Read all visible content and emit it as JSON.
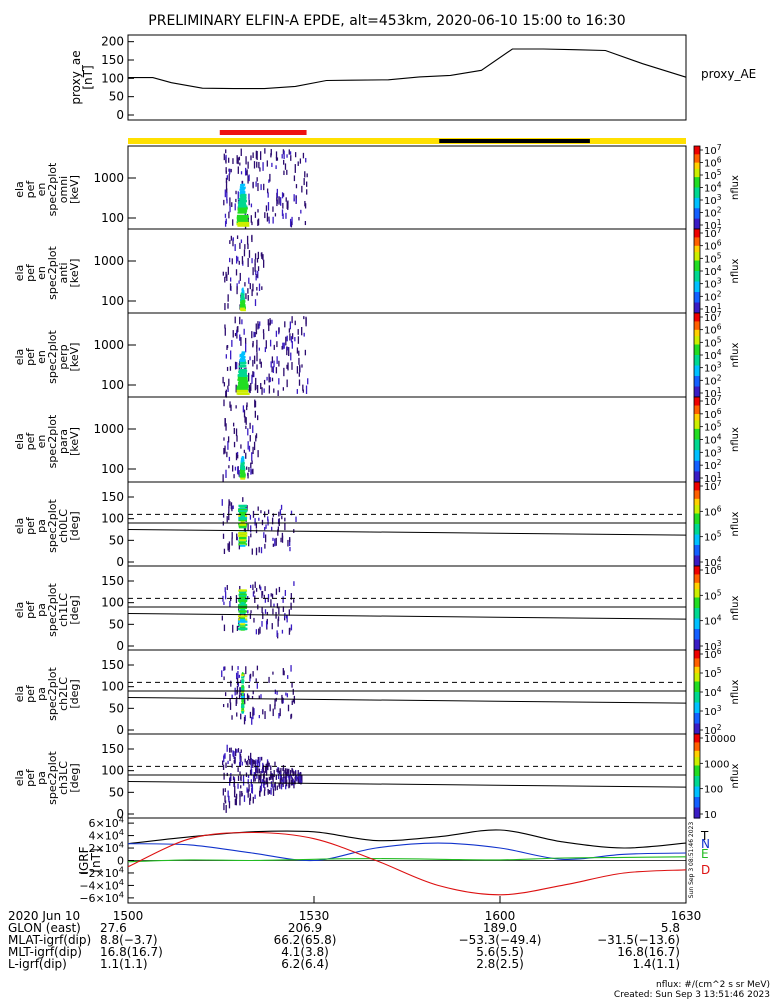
{
  "title": "PRELIMINARY ELFIN-A EPDE, alt=453km, 2020-06-10 15:00 to 16:30",
  "proxy_ae": {
    "ylabel_lines": [
      "proxy_ae",
      "[nT]"
    ],
    "right_label": "proxy_AE",
    "yticks": [
      "200",
      "150",
      "100",
      "50",
      "0"
    ],
    "ylim": [
      0,
      210
    ],
    "chart_data": {
      "type": "line",
      "x_minutes": [
        0,
        4,
        7,
        12,
        17,
        22,
        27,
        32,
        36,
        42,
        47,
        52,
        57,
        62,
        67,
        72,
        77,
        83,
        90
      ],
      "y_nT": [
        102,
        102,
        88,
        73,
        72,
        72,
        78,
        94,
        95,
        96,
        104,
        108,
        122,
        180,
        180,
        178,
        176,
        140,
        103
      ]
    }
  },
  "status_bar": {
    "colors": {
      "ok": "#ffe000",
      "science": "#ee1111",
      "eclipse": "#000000"
    },
    "segments": [
      {
        "start_min": 0,
        "end_min": 90,
        "kind": "ok"
      },
      {
        "start_min": 14.8,
        "end_min": 28.8,
        "kind": "science"
      },
      {
        "start_min": 50.2,
        "end_min": 74.5,
        "kind": "eclipse"
      }
    ]
  },
  "energy_panels": [
    {
      "name": "omni",
      "ylabel_lines": [
        "ela",
        "pef",
        "en",
        "spec2plot",
        "omni",
        "[keV]"
      ],
      "yticks": [
        "1000",
        "100"
      ],
      "cbar_label": "nflux",
      "cbar_ticks": [
        "10^7",
        "10^6",
        "10^5",
        "10^4",
        "10^3",
        "10^2",
        "10^1"
      ]
    },
    {
      "name": "anti",
      "ylabel_lines": [
        "ela",
        "pef",
        "en",
        "spec2plot",
        "anti",
        "[keV]"
      ],
      "yticks": [
        "1000",
        "100"
      ],
      "cbar_label": "nflux",
      "cbar_ticks": [
        "10^7",
        "10^6",
        "10^5",
        "10^4",
        "10^3",
        "10^2",
        "10^1"
      ]
    },
    {
      "name": "perp",
      "ylabel_lines": [
        "ela",
        "pef",
        "en",
        "spec2plot",
        "perp",
        "[keV]"
      ],
      "yticks": [
        "1000",
        "100"
      ],
      "cbar_label": "nflux",
      "cbar_ticks": [
        "10^7",
        "10^6",
        "10^5",
        "10^4",
        "10^3",
        "10^2",
        "10^1"
      ]
    },
    {
      "name": "para",
      "ylabel_lines": [
        "ela",
        "pef",
        "en",
        "spec2plot",
        "para",
        "[keV]"
      ],
      "yticks": [
        "1000",
        "100"
      ],
      "cbar_label": "nflux",
      "cbar_ticks": [
        "10^7",
        "10^6",
        "10^5",
        "10^4",
        "10^3",
        "10^2",
        "10^1"
      ]
    }
  ],
  "pa_panels": [
    {
      "name": "ch0LC",
      "ylabel_lines": [
        "ela",
        "pef",
        "pa",
        "spec2plot",
        "ch0LC",
        "[deg]"
      ],
      "yticks": [
        "150",
        "100",
        "50",
        "0"
      ],
      "cbar_label": "nflux",
      "cbar_ticks": [
        "10^7",
        "10^6",
        "10^5",
        "10^4"
      ]
    },
    {
      "name": "ch1LC",
      "ylabel_lines": [
        "ela",
        "pef",
        "pa",
        "spec2plot",
        "ch1LC",
        "[deg]"
      ],
      "yticks": [
        "150",
        "100",
        "50",
        "0"
      ],
      "cbar_label": "nflux",
      "cbar_ticks": [
        "10^6",
        "10^5",
        "10^4",
        "10^3"
      ]
    },
    {
      "name": "ch2LC",
      "ylabel_lines": [
        "ela",
        "pef",
        "pa",
        "spec2plot",
        "ch2LC",
        "[deg]"
      ],
      "yticks": [
        "150",
        "100",
        "50",
        "0"
      ],
      "cbar_label": "nflux",
      "cbar_ticks": [
        "10^6",
        "10^5",
        "10^4",
        "10^3",
        "10^2"
      ]
    },
    {
      "name": "ch3LC",
      "ylabel_lines": [
        "ela",
        "pef",
        "pa",
        "spec2plot",
        "ch3LC",
        "[deg]"
      ],
      "yticks": [
        "150",
        "100",
        "50",
        "0"
      ],
      "cbar_label": "nflux",
      "cbar_ticks": [
        "10000",
        "1000",
        "100",
        "10"
      ]
    }
  ],
  "igrf": {
    "ylabel_lines": [
      "IGRF",
      "[nT]"
    ],
    "yticks": [
      "6×10^4",
      "4×10^4",
      "2×10^4",
      "0",
      "−2×10^4",
      "−4×10^4",
      "−6×10^4"
    ],
    "ylim": [
      -65000,
      65000
    ],
    "legend": [
      {
        "label": "T",
        "color": "#000000"
      },
      {
        "label": "N",
        "color": "#1133cc"
      },
      {
        "label": "E",
        "color": "#22bb22"
      },
      {
        "label": "D",
        "color": "#dd1111"
      }
    ],
    "vertical_note": "Sun Sep  3 08:51:46 2023",
    "chart_data": {
      "type": "line",
      "x_minutes": [
        0,
        10,
        20,
        30,
        40,
        50,
        60,
        70,
        80,
        90
      ],
      "series": [
        {
          "label": "T",
          "values": [
            27000,
            38000,
            46000,
            46000,
            32000,
            38000,
            49000,
            30000,
            20000,
            28000
          ]
        },
        {
          "label": "N",
          "values": [
            27000,
            25000,
            12000,
            0,
            20000,
            28000,
            20000,
            2000,
            10000,
            12000
          ]
        },
        {
          "label": "E",
          "values": [
            -2000,
            1000,
            0,
            2000,
            3000,
            2000,
            1000,
            4000,
            5000,
            6000
          ]
        },
        {
          "label": "D",
          "values": [
            -10000,
            35000,
            45000,
            35000,
            0,
            -40000,
            -55000,
            -40000,
            -20000,
            -15000
          ]
        }
      ]
    }
  },
  "time_axis": {
    "tick_labels": [
      "1500",
      "1530",
      "1600",
      "1630"
    ],
    "tick_minutes": [
      0,
      30,
      60,
      90
    ]
  },
  "ephemeris": {
    "rows": [
      {
        "label": "2020 Jun 10",
        "values": [
          "",
          "",
          "",
          ""
        ]
      },
      {
        "label": "GLON (east)",
        "values": [
          "27.6",
          "206.9",
          "189.0",
          "5.8"
        ]
      },
      {
        "label": "MLAT-igrf(dip)",
        "values": [
          "8.8(−3.7)",
          "66.2(65.8)",
          "−53.3(−49.4)",
          "−31.5(−13.6)"
        ]
      },
      {
        "label": "MLT-igrf(dip)",
        "values": [
          "16.8(16.7)",
          "4.1(3.8)",
          "5.6(5.5)",
          "16.8(16.7)"
        ]
      },
      {
        "label": "L-igrf(dip)",
        "values": [
          "1.1(1.1)",
          "6.2(6.4)",
          "2.8(2.5)",
          "1.4(1.1)"
        ]
      }
    ]
  },
  "footer": {
    "units": "nflux: #/(cm^2 s sr MeV)",
    "created": "Created: Sun Sep  3 13:51:46 2023"
  }
}
